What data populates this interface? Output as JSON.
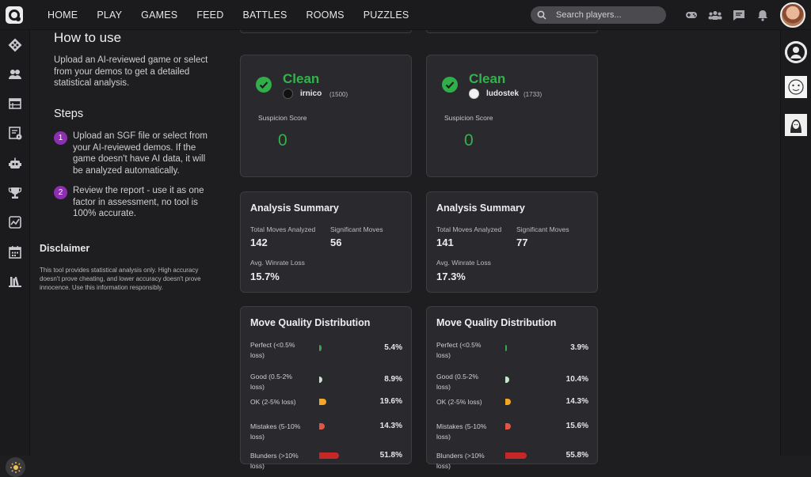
{
  "nav": {
    "links": [
      "HOME",
      "PLAY",
      "GAMES",
      "FEED",
      "BATTLES",
      "ROOMS",
      "PUZZLES"
    ],
    "search_placeholder": "Search players...",
    "right_icons": [
      "gamepad-icon",
      "group-icon",
      "chat-icon",
      "bell-icon"
    ]
  },
  "sidebar": {
    "icons": [
      "go-stones-icon",
      "players-icon",
      "tournaments-icon",
      "ladders-icon",
      "robot-icon",
      "trophy-icon",
      "analysis-icon",
      "calendar-icon",
      "library-icon"
    ],
    "theme_icon": "sun-icon"
  },
  "info": {
    "how_title": "How to use",
    "how_desc": "Upload an AI-reviewed game or select from your demos to get a detailed statistical analysis.",
    "steps_title": "Steps",
    "steps": [
      {
        "num": "1",
        "text": "Upload an SGF file or select from your AI-reviewed demos. If the game doesn't have AI data, it will be analyzed automatically."
      },
      {
        "num": "2",
        "text": "Review the report - use it as one factor in assessment, no tool is 100% accurate."
      }
    ],
    "disclaimer_title": "Disclaimer",
    "disclaimer_text": "This tool provides statistical analysis only. High accuracy doesn't prove cheating, and lower accuracy doesn't prove innocence. Use this information responsibly."
  },
  "players": [
    {
      "status": "Clean",
      "name": "irnico",
      "rank": "(1500)",
      "stone": "black",
      "suspicion_label": "Suspicion Score",
      "suspicion": "0",
      "summary": {
        "title": "Analysis Summary",
        "total_label": "Total Moves Analyzed",
        "total": "142",
        "sig_label": "Significant Moves",
        "sig": "56",
        "loss_label": "Avg. Winrate Loss",
        "loss": "15.7%"
      },
      "quality": {
        "title": "Move Quality Distribution",
        "rows": [
          {
            "label": "Perfect (<0.5% loss)",
            "pct": "5.4%",
            "frac": 0.054,
            "color": "#3aa655"
          },
          {
            "label": "Good (0.5-2% loss)",
            "pct": "8.9%",
            "frac": 0.089,
            "color": "#c8e6c9"
          },
          {
            "label": "OK (2-5% loss)",
            "pct": "19.6%",
            "frac": 0.196,
            "color": "#f5a623"
          },
          {
            "label": "Mistakes (5-10% loss)",
            "pct": "14.3%",
            "frac": 0.143,
            "color": "#e05545"
          },
          {
            "label": "Blunders (>10% loss)",
            "pct": "51.8%",
            "frac": 0.518,
            "color": "#c62828"
          }
        ]
      }
    },
    {
      "status": "Clean",
      "name": "ludostek",
      "rank": "(1733)",
      "stone": "white",
      "suspicion_label": "Suspicion Score",
      "suspicion": "0",
      "summary": {
        "title": "Analysis Summary",
        "total_label": "Total Moves Analyzed",
        "total": "141",
        "sig_label": "Significant Moves",
        "sig": "77",
        "loss_label": "Avg. Winrate Loss",
        "loss": "17.3%"
      },
      "quality": {
        "title": "Move Quality Distribution",
        "rows": [
          {
            "label": "Perfect (<0.5% loss)",
            "pct": "3.9%",
            "frac": 0.039,
            "color": "#3aa655"
          },
          {
            "label": "Good (0.5-2% loss)",
            "pct": "10.4%",
            "frac": 0.104,
            "color": "#c8e6c9"
          },
          {
            "label": "OK (2-5% loss)",
            "pct": "14.3%",
            "frac": 0.143,
            "color": "#f5a623"
          },
          {
            "label": "Mistakes (5-10% loss)",
            "pct": "15.6%",
            "frac": 0.156,
            "color": "#e05545"
          },
          {
            "label": "Blunders (>10% loss)",
            "pct": "55.8%",
            "frac": 0.558,
            "color": "#c62828"
          }
        ]
      }
    }
  ]
}
